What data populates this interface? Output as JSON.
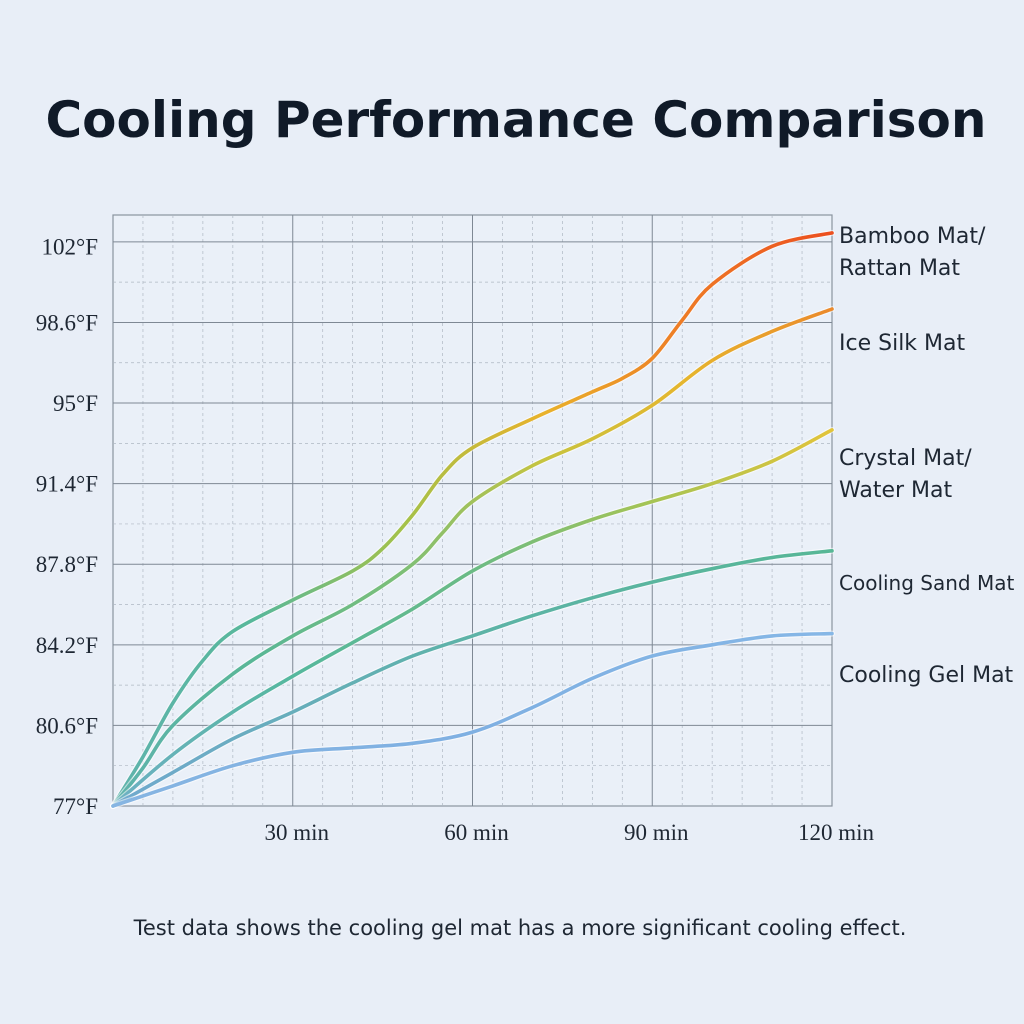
{
  "chart_data": {
    "type": "line",
    "title": "Cooling Performance Comparison",
    "caption": "Test data shows the cooling gel mat has a more significant cooling effect.",
    "xlabel": "",
    "ylabel": "",
    "xlim": [
      0,
      120
    ],
    "ylim": [
      77,
      103.4
    ],
    "x_ticks": [
      {
        "value": 30,
        "label": "30 min"
      },
      {
        "value": 60,
        "label": "60 min"
      },
      {
        "value": 90,
        "label": "90 min"
      },
      {
        "value": 120,
        "label": "120 min"
      }
    ],
    "y_ticks": [
      {
        "value": 77,
        "label": "77°F"
      },
      {
        "value": 80.6,
        "label": "80.6°F"
      },
      {
        "value": 84.2,
        "label": "84.2°F"
      },
      {
        "value": 87.8,
        "label": "87.8°F"
      },
      {
        "value": 91.4,
        "label": "91.4°F"
      },
      {
        "value": 95,
        "label": "95°F"
      },
      {
        "value": 98.6,
        "label": "98.6°F"
      },
      {
        "value": 102,
        "label": "102°F"
      }
    ],
    "grid": true,
    "legend": "right-end labels",
    "series": [
      {
        "name": "Bamboo Mat/ Rattan Mat",
        "label_lines": [
          "Bamboo Mat/",
          "Rattan Mat"
        ],
        "colors": [
          "#5fb3ad",
          "#58b89a",
          "#a3c24a",
          "#e9b22b",
          "#ee7a25",
          "#ec4f1f"
        ],
        "x": [
          0,
          5,
          10,
          15,
          20,
          30,
          40,
          45,
          50,
          55,
          60,
          70,
          80,
          85,
          90,
          95,
          100,
          110,
          120
        ],
        "values": [
          77,
          79.2,
          81.6,
          83.5,
          84.8,
          86.2,
          87.5,
          88.5,
          90,
          91.8,
          93,
          94.3,
          95.5,
          96.1,
          97,
          98.7,
          100.3,
          102,
          102.6
        ]
      },
      {
        "name": "Ice Silk Mat",
        "label_lines": [
          "Ice Silk Mat"
        ],
        "colors": [
          "#5fb3ad",
          "#59b796",
          "#7cbf77",
          "#c7c43f",
          "#e6b52d",
          "#eb8a2c"
        ],
        "x": [
          0,
          5,
          10,
          20,
          30,
          40,
          50,
          55,
          60,
          70,
          80,
          90,
          100,
          110,
          120
        ],
        "values": [
          77,
          78.7,
          80.6,
          82.9,
          84.6,
          86,
          87.8,
          89.2,
          90.6,
          92.2,
          93.4,
          94.9,
          96.9,
          98.2,
          99.2
        ]
      },
      {
        "name": "Crystal Mat/ Water Mat",
        "label_lines": [
          "Crystal Mat/",
          "Water Mat"
        ],
        "colors": [
          "#6eb0c4",
          "#55b89e",
          "#6bbb85",
          "#a6c454",
          "#e2c43a"
        ],
        "x": [
          0,
          10,
          20,
          30,
          40,
          50,
          60,
          70,
          80,
          90,
          100,
          110,
          120
        ],
        "values": [
          77,
          79.3,
          81.2,
          82.8,
          84.3,
          85.8,
          87.5,
          88.8,
          89.8,
          90.6,
          91.4,
          92.4,
          93.8
        ]
      },
      {
        "name": "Cooling Sand Mat",
        "label_lines": [
          "Cooling Sand Mat"
        ],
        "colors": [
          "#71a9cf",
          "#5db3a7",
          "#57b796"
        ],
        "x": [
          0,
          10,
          20,
          30,
          40,
          50,
          60,
          70,
          80,
          90,
          100,
          110,
          120
        ],
        "values": [
          77,
          78.5,
          80,
          81.2,
          82.5,
          83.7,
          84.6,
          85.5,
          86.3,
          87,
          87.6,
          88.1,
          88.4
        ]
      },
      {
        "name": "Cooling Gel Mat",
        "label_lines": [
          "Cooling Gel Mat"
        ],
        "colors": [
          "#86b5e2",
          "#7fb0e2",
          "#86b7e6"
        ],
        "x": [
          0,
          10,
          20,
          30,
          40,
          50,
          60,
          70,
          80,
          90,
          100,
          110,
          120
        ],
        "values": [
          77,
          77.9,
          78.8,
          79.4,
          79.6,
          79.8,
          80.3,
          81.4,
          82.7,
          83.7,
          84.2,
          84.6,
          84.7
        ]
      }
    ]
  }
}
